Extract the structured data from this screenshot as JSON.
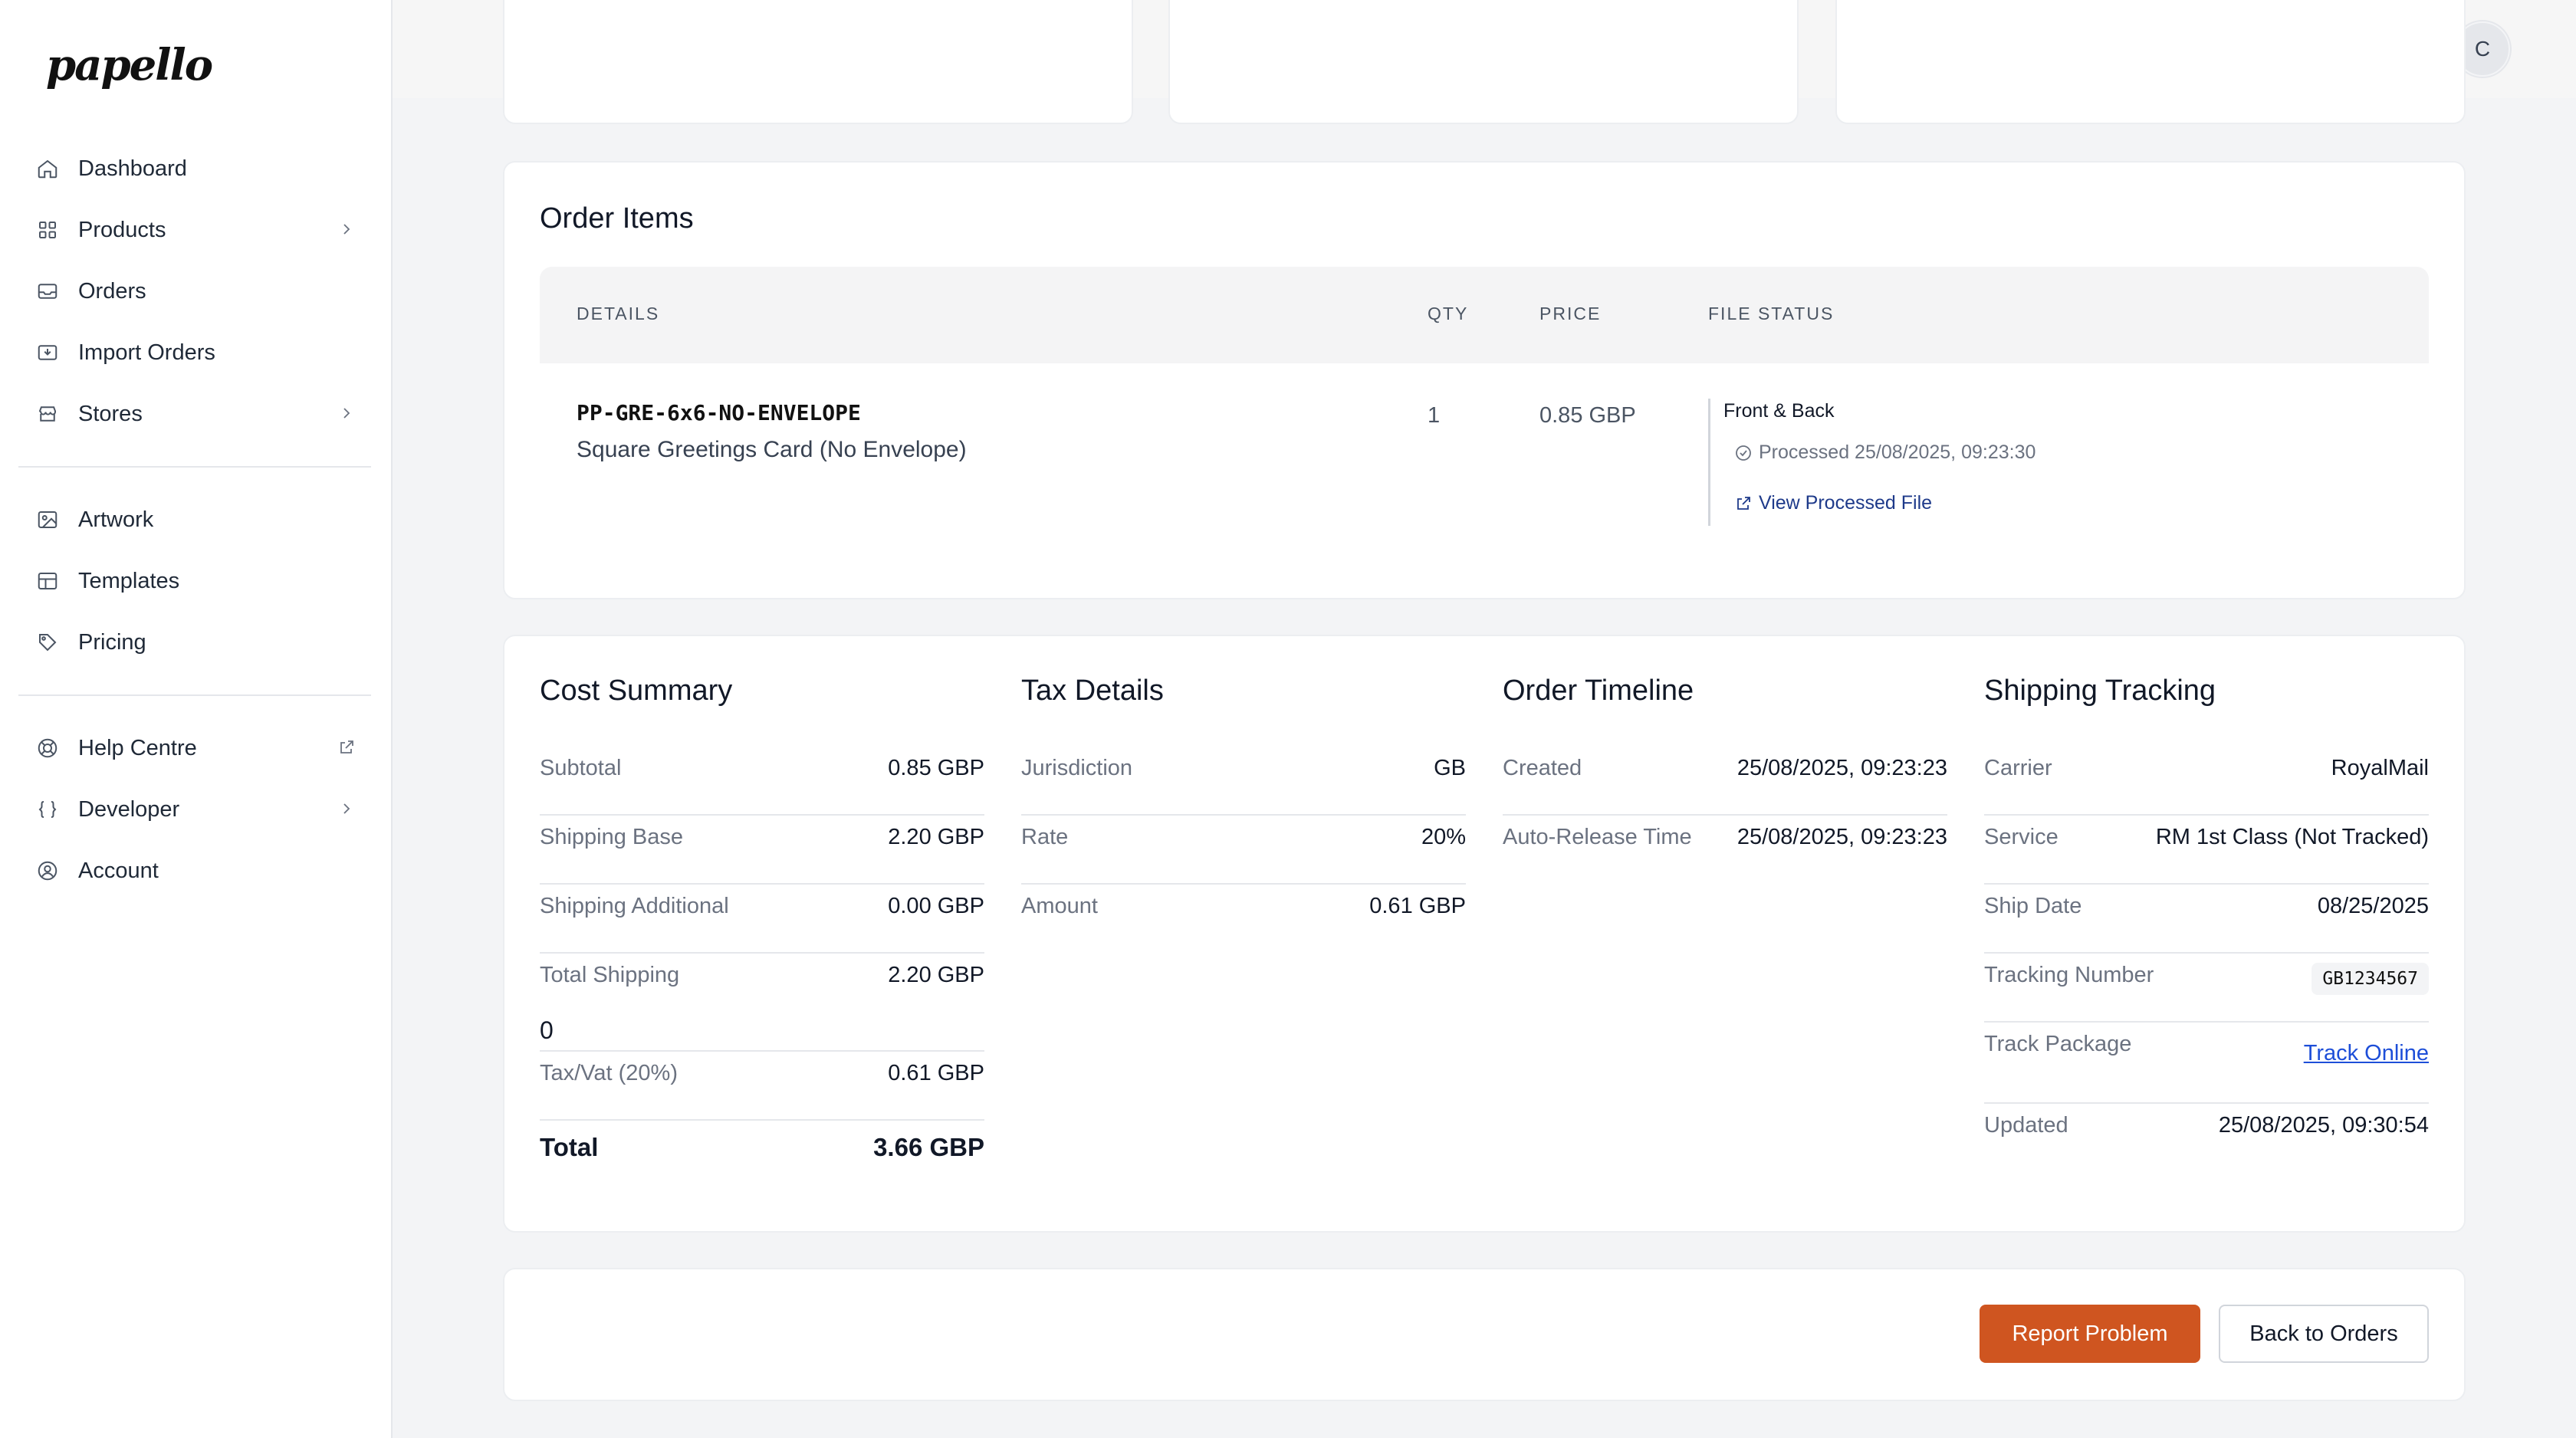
{
  "app": {
    "logo": "papello"
  },
  "sidebar": {
    "items": [
      {
        "label": "Dashboard",
        "icon": "home-icon"
      },
      {
        "label": "Products",
        "icon": "grid-icon"
      },
      {
        "label": "Orders",
        "icon": "inbox-icon"
      },
      {
        "label": "Import Orders",
        "icon": "import-icon"
      },
      {
        "label": "Stores",
        "icon": "store-icon"
      },
      {
        "label": "Artwork",
        "icon": "image-icon"
      },
      {
        "label": "Templates",
        "icon": "layout-icon"
      },
      {
        "label": "Pricing",
        "icon": "tag-icon"
      },
      {
        "label": "Help Centre",
        "icon": "lifebuoy-icon"
      },
      {
        "label": "Developer",
        "icon": "braces-icon"
      },
      {
        "label": "Account",
        "icon": "user-circle-icon"
      }
    ]
  },
  "header": {
    "avatar_initial": "C"
  },
  "order_items": {
    "title": "Order Items",
    "columns": [
      "DETAILS",
      "QTY",
      "PRICE",
      "FILE STATUS"
    ],
    "rows": [
      {
        "sku": "PP-GRE-6x6-NO-ENVELOPE",
        "description": "Square Greetings Card (No Envelope)",
        "qty": "1",
        "price": "0.85 GBP",
        "file_title": "Front & Back",
        "file_status": "Processed 25/08/2025, 09:23:30",
        "file_link": "View Processed File"
      }
    ]
  },
  "cost_summary": {
    "title": "Cost Summary",
    "rows": [
      {
        "k": "Subtotal",
        "v": "0.85 GBP"
      },
      {
        "k": "Shipping Base",
        "v": "2.20 GBP"
      },
      {
        "k": "Shipping Additional",
        "v": "0.00 GBP"
      },
      {
        "k": "Total Shipping",
        "v": "2.20 GBP"
      },
      {
        "k": "Tax/Vat (20%)",
        "v": "0.61 GBP"
      }
    ],
    "stray": "0",
    "total_label": "Total",
    "total_value": "3.66 GBP"
  },
  "tax_details": {
    "title": "Tax Details",
    "rows": [
      {
        "k": "Jurisdiction",
        "v": "GB"
      },
      {
        "k": "Rate",
        "v": "20%"
      },
      {
        "k": "Amount",
        "v": "0.61 GBP"
      }
    ]
  },
  "order_timeline": {
    "title": "Order Timeline",
    "rows": [
      {
        "k": "Created",
        "v": "25/08/2025, 09:23:23"
      },
      {
        "k": "Auto-Release Time",
        "v": "25/08/2025, 09:23:23"
      }
    ]
  },
  "shipping_tracking": {
    "title": "Shipping Tracking",
    "rows": [
      {
        "k": "Carrier",
        "v": "RoyalMail"
      },
      {
        "k": "Service",
        "v": "RM 1st Class (Not Tracked)"
      },
      {
        "k": "Ship Date",
        "v": "08/25/2025"
      },
      {
        "k": "Tracking Number",
        "v": "GB1234567"
      },
      {
        "k": "Track Package",
        "v": "Track Online"
      },
      {
        "k": "Updated",
        "v": "25/08/2025, 09:30:54"
      }
    ]
  },
  "actions": {
    "report": "Report Problem",
    "back": "Back to Orders"
  },
  "colors": {
    "accent": "#cf5520",
    "link": "#1d4ed8"
  }
}
